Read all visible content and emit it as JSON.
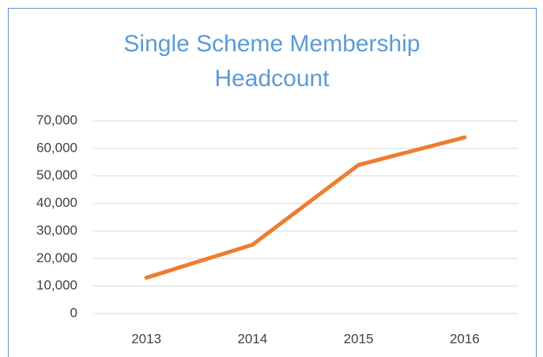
{
  "chart_data": {
    "type": "line",
    "title": "Single Scheme Membership Headcount",
    "categories": [
      "2013",
      "2014",
      "2015",
      "2016"
    ],
    "series": [
      {
        "color": "#ed7d31",
        "values": [
          13000,
          25000,
          54000,
          64000
        ]
      }
    ],
    "ylim": [
      0,
      70000
    ],
    "yticks": [
      0,
      {
        "value": 10000,
        "label": "10,000"
      },
      {
        "value": 20000,
        "label": "20,000"
      },
      {
        "value": 30000,
        "label": "30,000"
      },
      {
        "value": 40000,
        "label": "40,000"
      },
      {
        "value": 50000,
        "label": "50,000"
      },
      {
        "value": 60000,
        "label": "60,000"
      },
      {
        "value": 70000,
        "label": "70,000"
      }
    ],
    "grid": true
  }
}
